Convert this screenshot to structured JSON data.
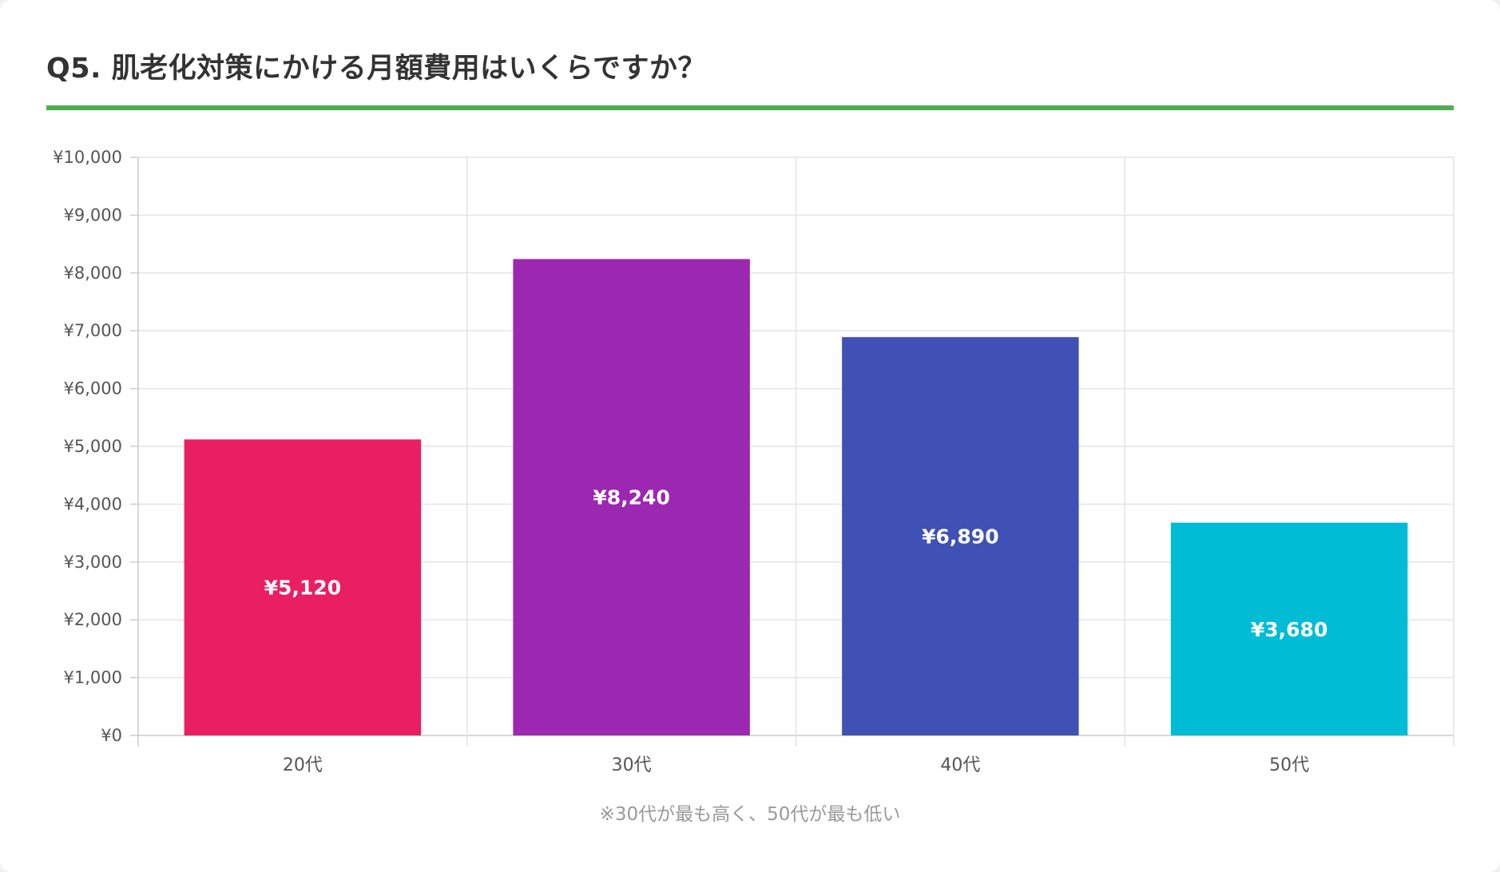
{
  "title": "Q5. 肌老化対策にかける月額費用はいくらですか？",
  "accent_color": "#4caf50",
  "footnote": "※30代が最も高く、50代が最も低い",
  "chart_data": {
    "type": "bar",
    "title": "Q5. 肌老化対策にかける月額費用はいくらですか？",
    "xlabel": "",
    "ylabel": "",
    "categories": [
      "20代",
      "30代",
      "40代",
      "50代"
    ],
    "values": [
      5120,
      8240,
      6890,
      3680
    ],
    "value_labels": [
      "¥5,120",
      "¥8,240",
      "¥6,890",
      "¥3,680"
    ],
    "colors": [
      "#e91e63",
      "#9c27b0",
      "#3f51b5",
      "#00bcd4"
    ],
    "ylim": [
      0,
      10000
    ],
    "yticks": [
      0,
      1000,
      2000,
      3000,
      4000,
      5000,
      6000,
      7000,
      8000,
      9000,
      10000
    ],
    "ytick_labels": [
      "¥0",
      "¥1,000",
      "¥2,000",
      "¥3,000",
      "¥4,000",
      "¥5,000",
      "¥6,000",
      "¥7,000",
      "¥8,000",
      "¥9,000",
      "¥10,000"
    ],
    "grid": true,
    "legend": "none"
  }
}
